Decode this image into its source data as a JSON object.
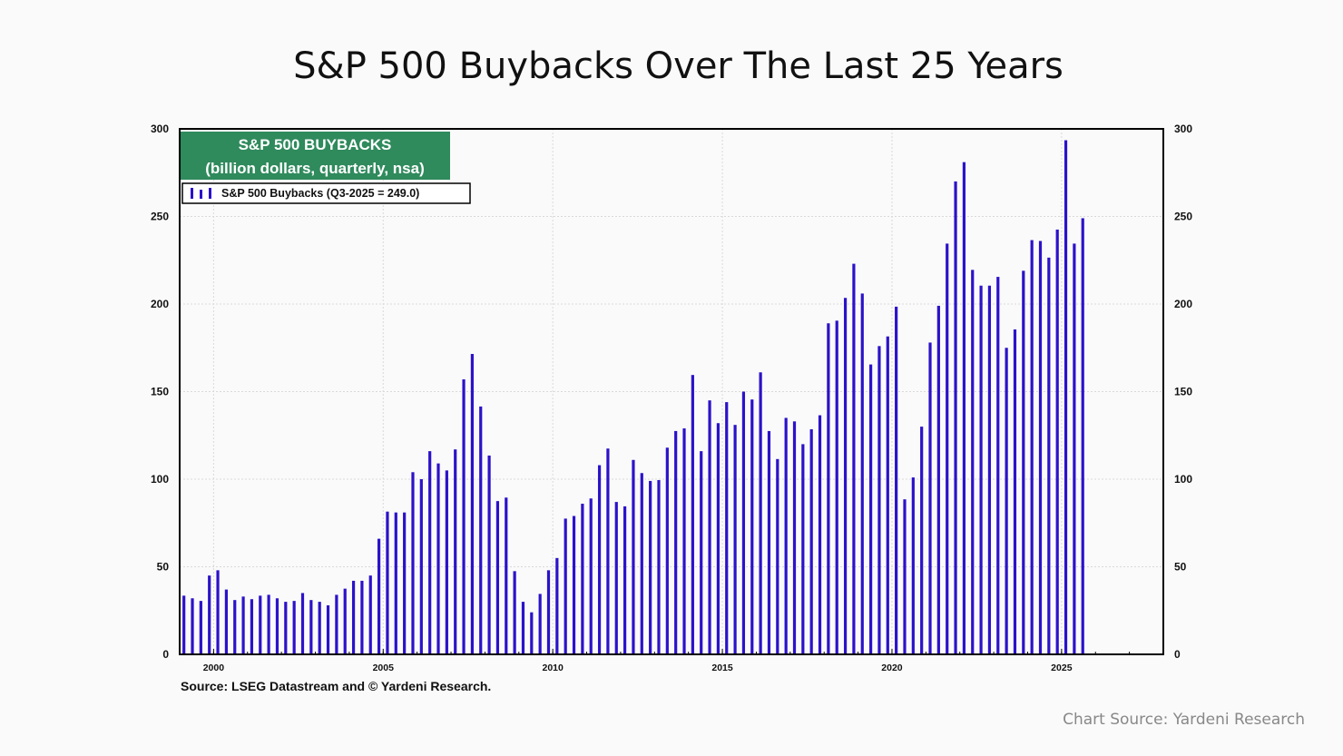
{
  "slide": {
    "title": "S&P 500 Buybacks Over The Last 25 Years",
    "chart_source_credit": "Chart Source: Yardeni Research"
  },
  "chart_data": {
    "type": "bar",
    "title": "S&P 500 BUYBACKS",
    "subtitle": "(billion dollars, quarterly, nsa)",
    "legend": "S&P 500 Buybacks (Q3-2025 = 249.0)",
    "legend_placement": "top-left",
    "source": "Source: LSEG Datastream and © Yardeni Research.",
    "ylim": [
      0,
      300
    ],
    "yticks": [
      0,
      50,
      100,
      150,
      200,
      250,
      300
    ],
    "xlim": [
      1999.0,
      2028.0
    ],
    "xticks": [
      2000,
      2005,
      2010,
      2015,
      2020,
      2025
    ],
    "grid": true,
    "colors": {
      "bar": "#2b12c9",
      "box_bg": "#2f8a5c",
      "frame": "#000000"
    },
    "series": [
      {
        "name": "S&P 500 Buybacks",
        "start_quarter": "Q1-1999",
        "values": [
          33.5,
          32,
          30.5,
          45,
          48,
          37,
          31,
          33,
          31.5,
          33.5,
          34,
          32,
          30,
          30.5,
          35,
          31,
          30,
          28,
          34,
          37.5,
          42,
          42,
          45,
          66,
          81.5,
          81,
          81,
          104,
          100,
          116,
          109,
          105,
          117,
          157,
          171.5,
          141.5,
          113.5,
          87.5,
          89.5,
          47.5,
          30,
          24,
          34.5,
          48,
          55,
          77.5,
          79,
          86,
          89,
          108,
          117.5,
          87,
          84.5,
          111,
          103.5,
          99,
          99.5,
          118,
          127.5,
          129,
          159.5,
          116,
          145,
          132,
          144,
          131,
          150,
          145.5,
          161,
          127.5,
          111.5,
          135,
          133,
          120,
          128.5,
          136.5,
          189,
          190.5,
          203.5,
          223,
          206,
          165.5,
          176,
          181.5,
          198.5,
          88.5,
          101,
          130,
          178,
          199,
          234.5,
          270,
          281,
          219.5,
          210.5,
          210.5,
          215.5,
          175,
          185.5,
          219,
          236.5,
          236,
          226.5,
          242.5,
          293.5,
          234.5,
          249
        ]
      }
    ]
  }
}
